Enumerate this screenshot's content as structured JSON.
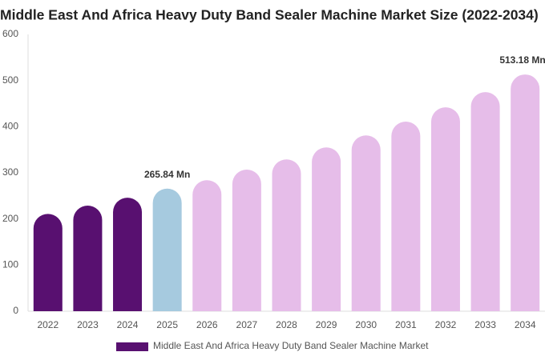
{
  "chart_data": {
    "type": "bar",
    "title": "Middle East And Africa Heavy Duty Band Sealer Machine Market Size (2022-2034)",
    "categories": [
      "2022",
      "2023",
      "2024",
      "2025",
      "2026",
      "2027",
      "2028",
      "2029",
      "2030",
      "2031",
      "2032",
      "2033",
      "2034"
    ],
    "series": [
      {
        "name": "Middle East And Africa Heavy Duty Band Sealer Machine Market",
        "color": "#581070",
        "colors": [
          "#581070",
          "#581070",
          "#581070",
          "#a6cadf",
          "#e6bde9",
          "#e6bde9",
          "#e6bde9",
          "#e6bde9",
          "#e6bde9",
          "#e6bde9",
          "#e6bde9",
          "#e6bde9",
          "#e6bde9"
        ],
        "values": [
          211,
          229,
          246,
          265.84,
          284,
          307,
          329,
          355,
          381,
          411,
          442,
          475,
          513.18
        ],
        "value_labels": [
          null,
          null,
          null,
          "265.84 Mn",
          null,
          null,
          null,
          null,
          null,
          null,
          null,
          null,
          "513.18 Mn"
        ]
      }
    ],
    "ylim": [
      0,
      600
    ],
    "yticks": [
      0,
      100,
      200,
      300,
      400,
      500,
      600
    ],
    "legend": "bottom"
  }
}
